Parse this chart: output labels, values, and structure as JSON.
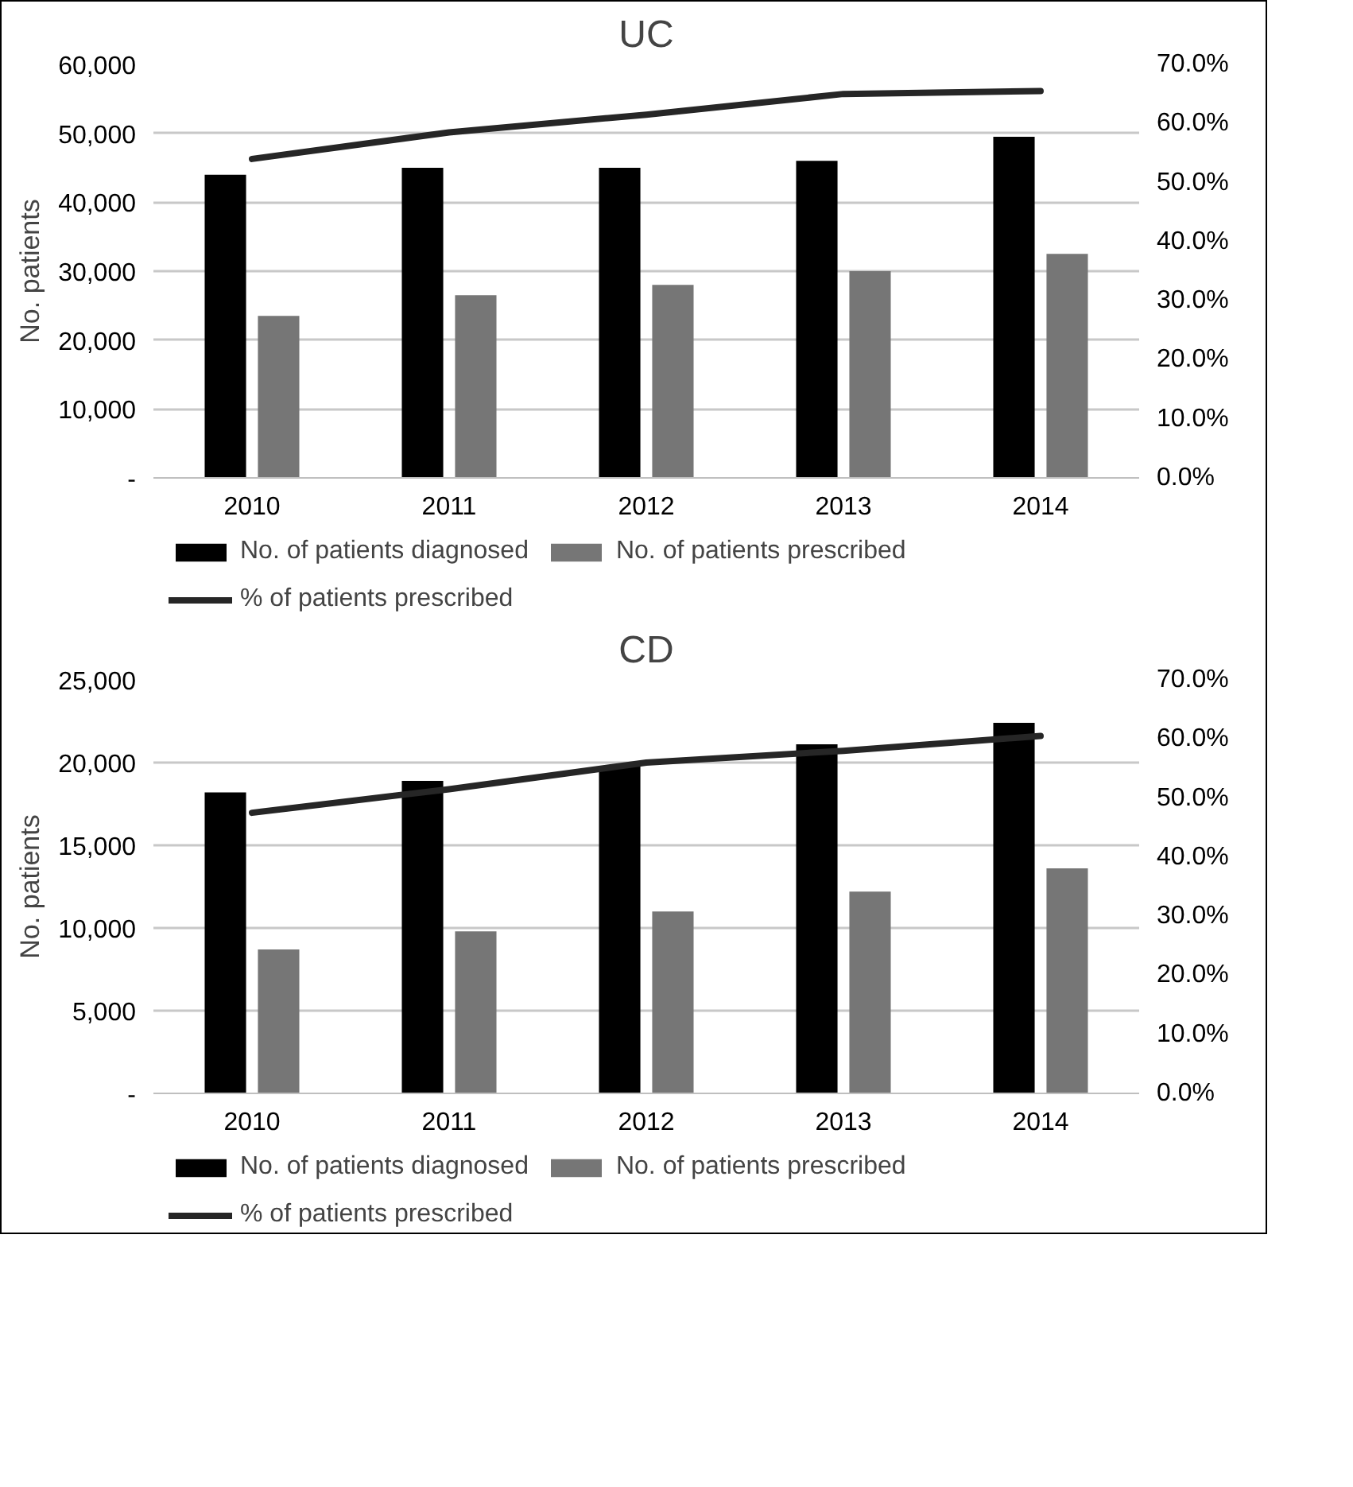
{
  "chart_data": [
    {
      "type": "bar",
      "title": "UC",
      "ylabel": "No. patients",
      "categories": [
        "2010",
        "2011",
        "2012",
        "2013",
        "2014"
      ],
      "series": [
        {
          "name": "No. of patients diagnosed",
          "color": "#000000",
          "values": [
            44000,
            45000,
            45000,
            46000,
            49500
          ]
        },
        {
          "name": "No. of patients prescribed",
          "color": "#767676",
          "values": [
            23500,
            26500,
            28000,
            30000,
            32500
          ]
        },
        {
          "name": "% of patients prescribed",
          "type": "line",
          "axis": "y2",
          "color": "#262626",
          "values": [
            54,
            58.5,
            61.5,
            65,
            65.5
          ]
        }
      ],
      "ylim": [
        0,
        60000
      ],
      "yticks": [
        {
          "value": 0,
          "label": "-"
        },
        {
          "value": 10000,
          "label": "10,000"
        },
        {
          "value": 20000,
          "label": "20,000"
        },
        {
          "value": 30000,
          "label": "30,000"
        },
        {
          "value": 40000,
          "label": "40,000"
        },
        {
          "value": 50000,
          "label": "50,000"
        },
        {
          "value": 60000,
          "label": "60,000"
        }
      ],
      "y2lim": [
        0,
        70
      ],
      "y2ticks": [
        {
          "value": 0,
          "label": "0.0%"
        },
        {
          "value": 10,
          "label": "10.0%"
        },
        {
          "value": 20,
          "label": "20.0%"
        },
        {
          "value": 30,
          "label": "30.0%"
        },
        {
          "value": 40,
          "label": "40.0%"
        },
        {
          "value": 50,
          "label": "50.0%"
        },
        {
          "value": 60,
          "label": "60.0%"
        },
        {
          "value": 70,
          "label": "70.0%"
        }
      ],
      "grid": "y",
      "legend": "bottom"
    },
    {
      "type": "bar",
      "title": "CD",
      "ylabel": "No. patients",
      "categories": [
        "2010",
        "2011",
        "2012",
        "2013",
        "2014"
      ],
      "series": [
        {
          "name": "No. of patients diagnosed",
          "color": "#000000",
          "values": [
            18200,
            18900,
            19800,
            21100,
            22400
          ]
        },
        {
          "name": "No. of patients prescribed",
          "color": "#767676",
          "values": [
            8700,
            9800,
            11000,
            12200,
            13600
          ]
        },
        {
          "name": "% of patients prescribed",
          "type": "line",
          "axis": "y2",
          "color": "#262626",
          "values": [
            47.5,
            51.5,
            56,
            58,
            60.5
          ]
        }
      ],
      "ylim": [
        0,
        25000
      ],
      "yticks": [
        {
          "value": 0,
          "label": "-"
        },
        {
          "value": 5000,
          "label": "5,000"
        },
        {
          "value": 10000,
          "label": "10,000"
        },
        {
          "value": 15000,
          "label": "15,000"
        },
        {
          "value": 20000,
          "label": "20,000"
        },
        {
          "value": 25000,
          "label": "25,000"
        }
      ],
      "y2lim": [
        0,
        70
      ],
      "y2ticks": [
        {
          "value": 0,
          "label": "0.0%"
        },
        {
          "value": 10,
          "label": "10.0%"
        },
        {
          "value": 20,
          "label": "20.0%"
        },
        {
          "value": 30,
          "label": "30.0%"
        },
        {
          "value": 40,
          "label": "40.0%"
        },
        {
          "value": 50,
          "label": "50.0%"
        },
        {
          "value": 60,
          "label": "60.0%"
        },
        {
          "value": 70,
          "label": "70.0%"
        }
      ],
      "grid": "y",
      "legend": "bottom"
    }
  ]
}
